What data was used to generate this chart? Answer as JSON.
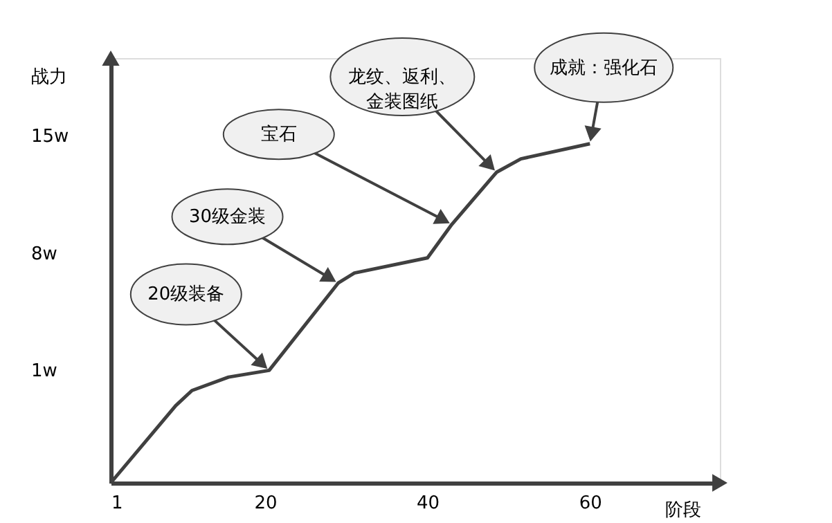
{
  "chart_data": {
    "type": "line",
    "xlabel": "阶段",
    "ylabel": "战力",
    "color": "#404040",
    "x": [
      1,
      9,
      11,
      15.5,
      20.5,
      29,
      31,
      40,
      43,
      48.5,
      51.5,
      60
    ],
    "values": [
      -5.7,
      -1.1,
      -0.2,
      0.6,
      1,
      6.2,
      6.8,
      7.7,
      9.7,
      12.8,
      13.6,
      14.5
    ],
    "xlim": [
      1,
      76
    ],
    "ylim": [
      -5.7,
      19.6
    ],
    "xticks": [
      1,
      20,
      40,
      60
    ],
    "yticks": [
      {
        "value": 1,
        "label": "1w"
      },
      {
        "value": 8,
        "label": "8w"
      },
      {
        "value": 15,
        "label": "15w"
      }
    ],
    "grid": false,
    "marker": "none",
    "line_style": "solid",
    "annotations": [
      {
        "text": "20级装备",
        "x": 20.5,
        "y": 1
      },
      {
        "text": "30级金装",
        "x": 29,
        "y": 6.2
      },
      {
        "text": "宝石",
        "x": 43,
        "y": 9.7
      },
      {
        "text": "龙纹、返利、金装图纸",
        "x": 48.5,
        "y": 12.8
      },
      {
        "text": "成就：强化石",
        "x": 60,
        "y": 14.5
      }
    ]
  }
}
